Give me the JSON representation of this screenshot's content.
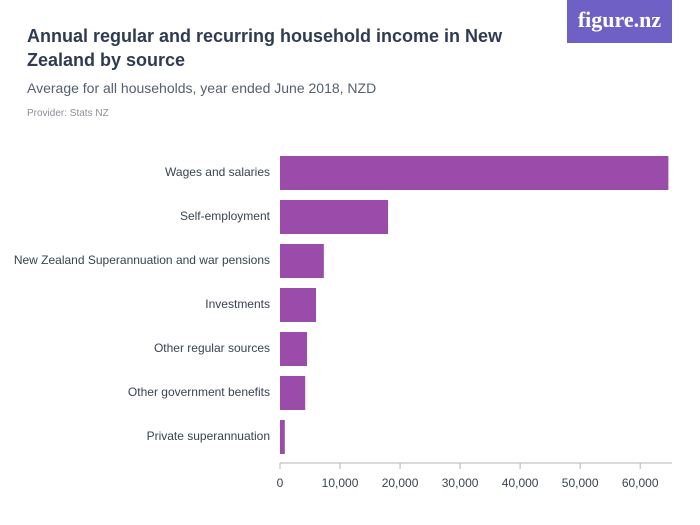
{
  "brand": "figure.nz",
  "chart_data": {
    "type": "bar",
    "orientation": "horizontal",
    "title": "Annual regular and recurring household income in New Zealand by source",
    "subtitle": "Average for all households, year ended June 2018, NZD",
    "provider": "Provider: Stats NZ",
    "categories": [
      "Wages and salaries",
      "Self-employment",
      "New Zealand Superannuation and war pensions",
      "Investments",
      "Other regular sources",
      "Other government benefits",
      "Private superannuation"
    ],
    "values": [
      64700,
      18000,
      7300,
      6000,
      4500,
      4200,
      800
    ],
    "color": "#9b4ba9",
    "xlim": [
      0,
      65300
    ],
    "xticks": [
      0,
      {
        "value": 10000,
        "label": "10,000"
      },
      {
        "value": 20000,
        "label": "20,000"
      },
      {
        "value": 30000,
        "label": "30,000"
      },
      {
        "value": 40000,
        "label": "40,000"
      },
      {
        "value": 50000,
        "label": "50,000"
      },
      {
        "value": 60000,
        "label": "60,000"
      }
    ],
    "grid": false
  }
}
